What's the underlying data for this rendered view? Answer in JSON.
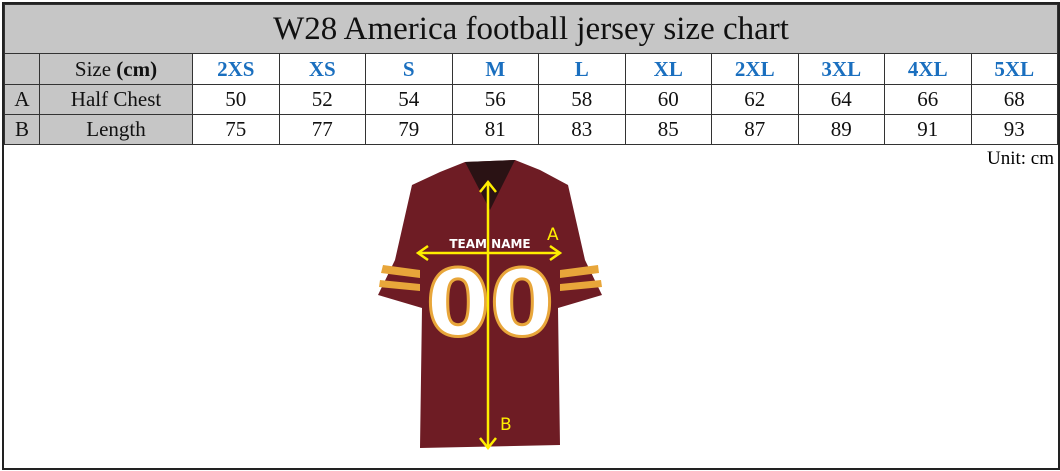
{
  "title": "W28 America football jersey size chart",
  "header": {
    "label_prefix": "Size ",
    "label_unit": "(cm)",
    "sizes": [
      "2XS",
      "XS",
      "S",
      "M",
      "L",
      "XL",
      "2XL",
      "3XL",
      "4XL",
      "5XL"
    ]
  },
  "rows": [
    {
      "key": "A",
      "label": "Half Chest",
      "values": [
        50,
        52,
        54,
        56,
        58,
        60,
        62,
        64,
        66,
        68
      ]
    },
    {
      "key": "B",
      "label": "Length",
      "values": [
        75,
        77,
        79,
        81,
        83,
        85,
        87,
        89,
        91,
        93
      ]
    }
  ],
  "unit": "Unit: cm",
  "jersey": {
    "team_name": "TEAM NAME",
    "number": "00",
    "label_a": "A",
    "label_b": "B"
  },
  "colors": {
    "size_text": "#1a6fbf",
    "header_bg": "#c6c6c6",
    "jersey": "#6e1c24",
    "trim": "#e8a63a",
    "arrow": "#ffee00"
  }
}
